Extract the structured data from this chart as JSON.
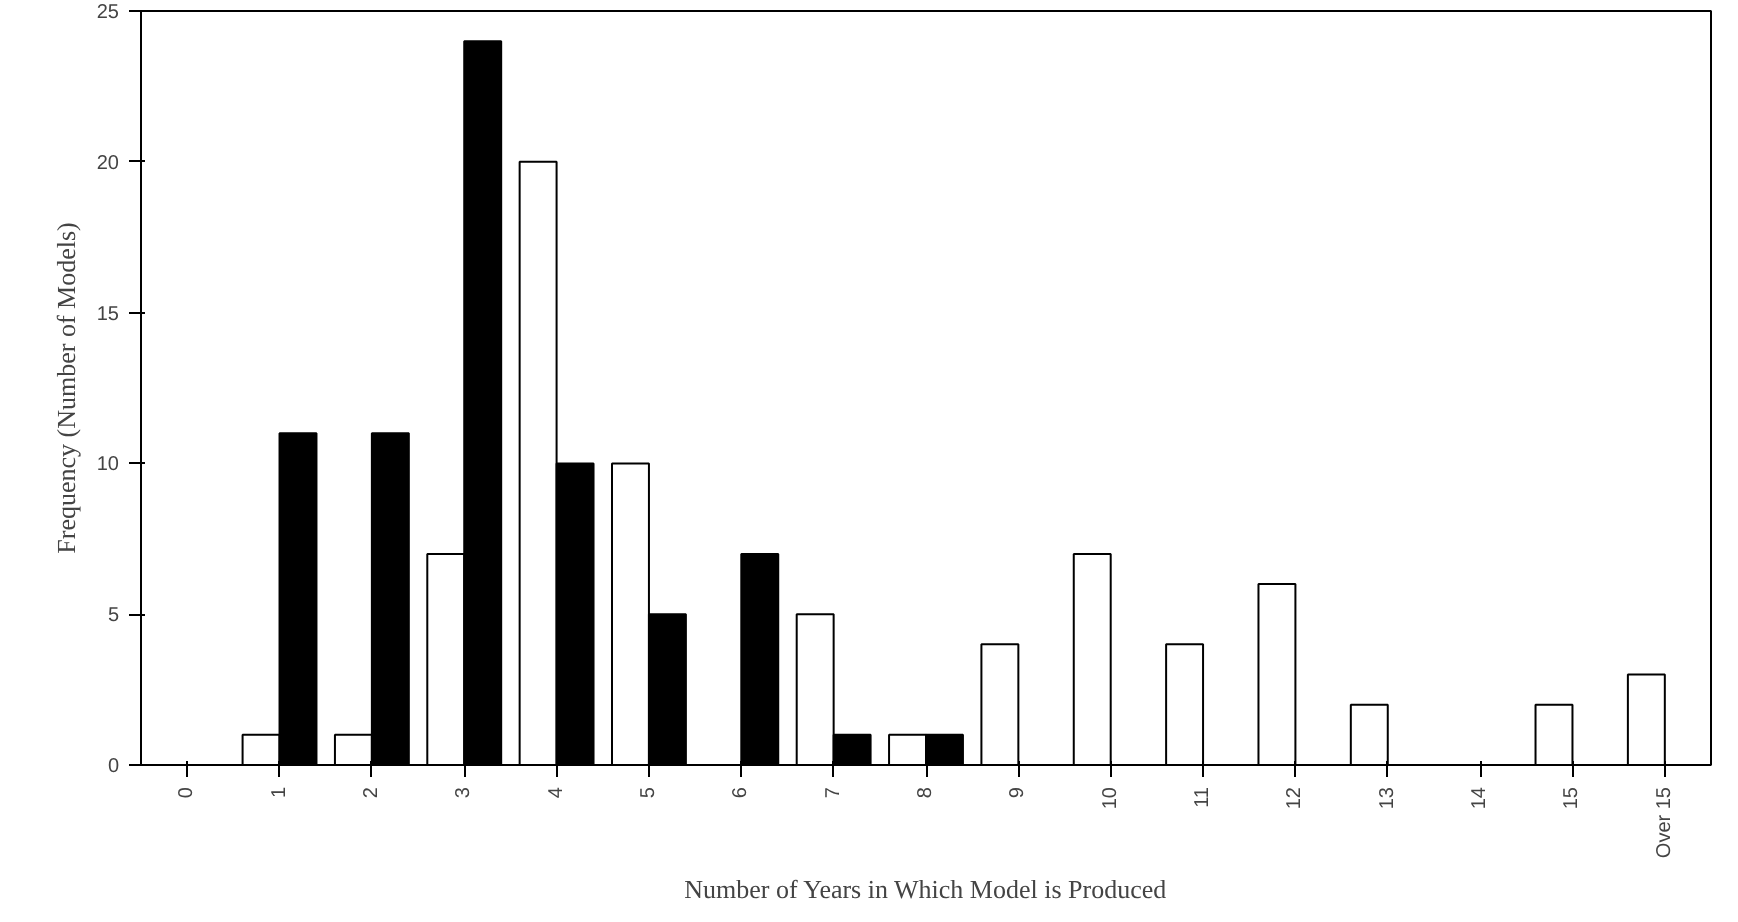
{
  "chart_data": {
    "type": "bar",
    "xlabel": "Number of Years in Which Model is Produced",
    "ylabel": "Frequency (Number of Models)",
    "categories": [
      "0",
      "1",
      "2",
      "3",
      "4",
      "5",
      "6",
      "7",
      "8",
      "9",
      "10",
      "11",
      "12",
      "13",
      "14",
      "15",
      "Over 15"
    ],
    "series": [
      {
        "color": "#ffffff",
        "values": [
          0,
          1,
          1,
          7,
          20,
          10,
          0,
          5,
          1,
          4,
          7,
          4,
          6,
          2,
          0,
          2,
          3
        ]
      },
      {
        "color": "#000000",
        "values": [
          0,
          11,
          11,
          24,
          10,
          5,
          7,
          1,
          1,
          0,
          0,
          0,
          0,
          0,
          0,
          0,
          0
        ]
      }
    ],
    "ylim": [
      0,
      25
    ],
    "yticks": [
      0,
      5,
      10,
      15,
      20,
      25
    ],
    "grid": false
  }
}
